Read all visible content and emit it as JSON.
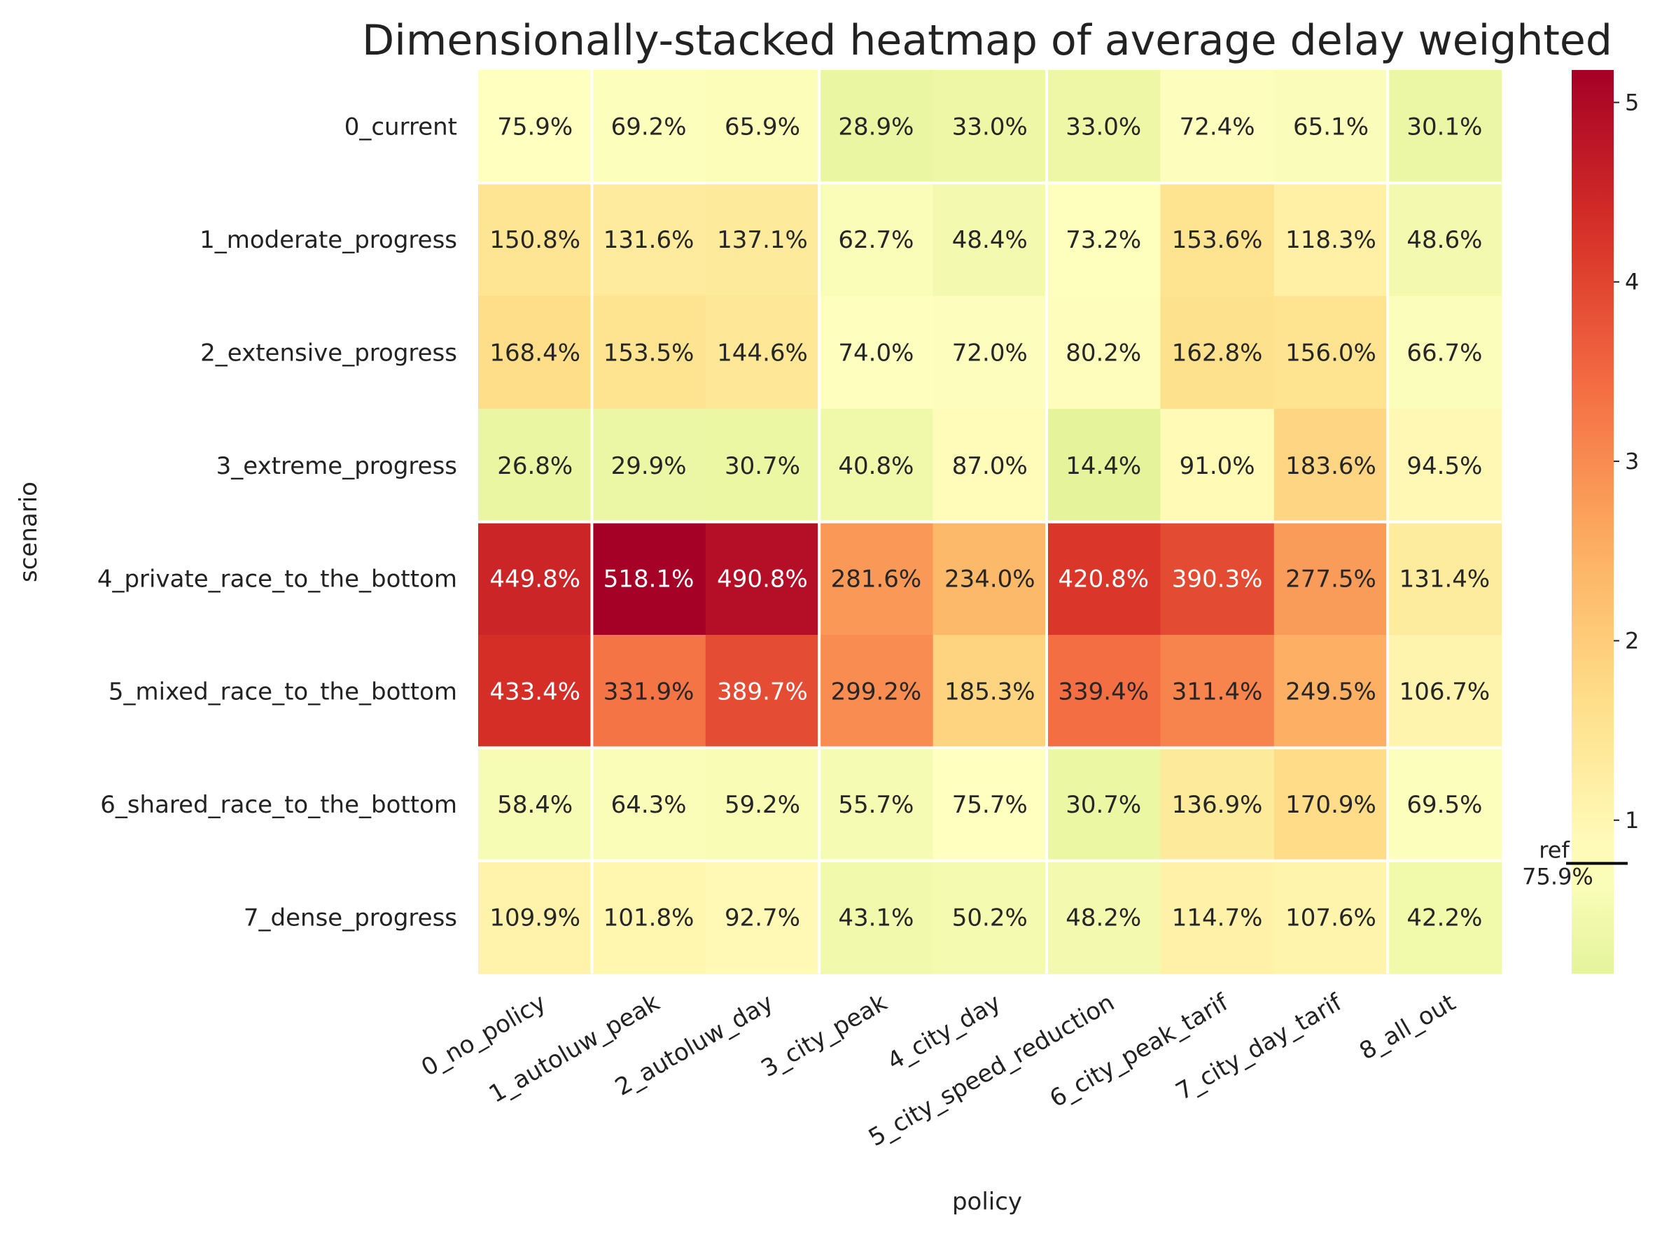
{
  "chart_data": {
    "type": "heatmap",
    "title": "Dimensionally-stacked heatmap of average delay weighted",
    "xlabel": "policy",
    "ylabel": "scenario",
    "x_categories": [
      "0_no_policy",
      "1_autoluw_peak",
      "2_autoluw_day",
      "3_city_peak",
      "4_city_day",
      "5_city_speed_reduction",
      "6_city_peak_tarif",
      "7_city_day_tarif",
      "8_all_out"
    ],
    "y_categories": [
      "0_current",
      "1_moderate_progress",
      "2_extensive_progress",
      "3_extreme_progress",
      "4_private_race_to_the_bottom",
      "5_mixed_race_to_the_bottom",
      "6_shared_race_to_the_bottom",
      "7_dense_progress"
    ],
    "values": [
      [
        0.759,
        0.692,
        0.659,
        0.289,
        0.33,
        0.33,
        0.724,
        0.651,
        0.301
      ],
      [
        1.508,
        1.316,
        1.371,
        0.627,
        0.484,
        0.732,
        1.536,
        1.183,
        0.486
      ],
      [
        1.684,
        1.535,
        1.446,
        0.74,
        0.72,
        0.802,
        1.628,
        1.56,
        0.667
      ],
      [
        0.268,
        0.299,
        0.307,
        0.408,
        0.87,
        0.144,
        0.91,
        1.836,
        0.945
      ],
      [
        4.498,
        5.181,
        4.908,
        2.816,
        2.34,
        4.208,
        3.903,
        2.775,
        1.314
      ],
      [
        4.334,
        3.319,
        3.897,
        2.992,
        1.853,
        3.394,
        3.114,
        2.495,
        1.067
      ],
      [
        0.584,
        0.643,
        0.592,
        0.557,
        0.757,
        0.307,
        1.369,
        1.709,
        0.695
      ],
      [
        1.099,
        1.018,
        0.927,
        0.431,
        0.502,
        0.482,
        1.147,
        1.076,
        0.422
      ]
    ],
    "cell_labels": [
      [
        "75.9%",
        "69.2%",
        "65.9%",
        "28.9%",
        "33.0%",
        "33.0%",
        "72.4%",
        "65.1%",
        "30.1%"
      ],
      [
        "150.8%",
        "131.6%",
        "137.1%",
        "62.7%",
        "48.4%",
        "73.2%",
        "153.6%",
        "118.3%",
        "48.6%"
      ],
      [
        "168.4%",
        "153.5%",
        "144.6%",
        "74.0%",
        "72.0%",
        "80.2%",
        "162.8%",
        "156.0%",
        "66.7%"
      ],
      [
        "26.8%",
        "29.9%",
        "30.7%",
        "40.8%",
        "87.0%",
        "14.4%",
        "91.0%",
        "183.6%",
        "94.5%"
      ],
      [
        "449.8%",
        "518.1%",
        "490.8%",
        "281.6%",
        "234.0%",
        "420.8%",
        "390.3%",
        "277.5%",
        "131.4%"
      ],
      [
        "433.4%",
        "331.9%",
        "389.7%",
        "299.2%",
        "185.3%",
        "339.4%",
        "311.4%",
        "249.5%",
        "106.7%"
      ],
      [
        "58.4%",
        "64.3%",
        "59.2%",
        "55.7%",
        "75.7%",
        "30.7%",
        "136.9%",
        "170.9%",
        "69.5%"
      ],
      [
        "109.9%",
        "101.8%",
        "92.7%",
        "43.1%",
        "50.2%",
        "48.2%",
        "114.7%",
        "107.6%",
        "42.2%"
      ]
    ],
    "colorbar": {
      "colormap": "RdYlGn_r",
      "range": [
        0.144,
        5.181
      ],
      "ticks": [
        1,
        2,
        3,
        4,
        5
      ],
      "tick_labels": [
        "1",
        "2",
        "3",
        "4",
        "5"
      ],
      "reference": {
        "value": 0.759,
        "label": "ref",
        "value_label": "75.9%"
      }
    },
    "separators": {
      "vertical_after_column": [
        0,
        2,
        4,
        7
      ],
      "horizontal_after_row": [
        0,
        3,
        5,
        6
      ]
    },
    "grid": false,
    "legend": "colorbar-right"
  }
}
